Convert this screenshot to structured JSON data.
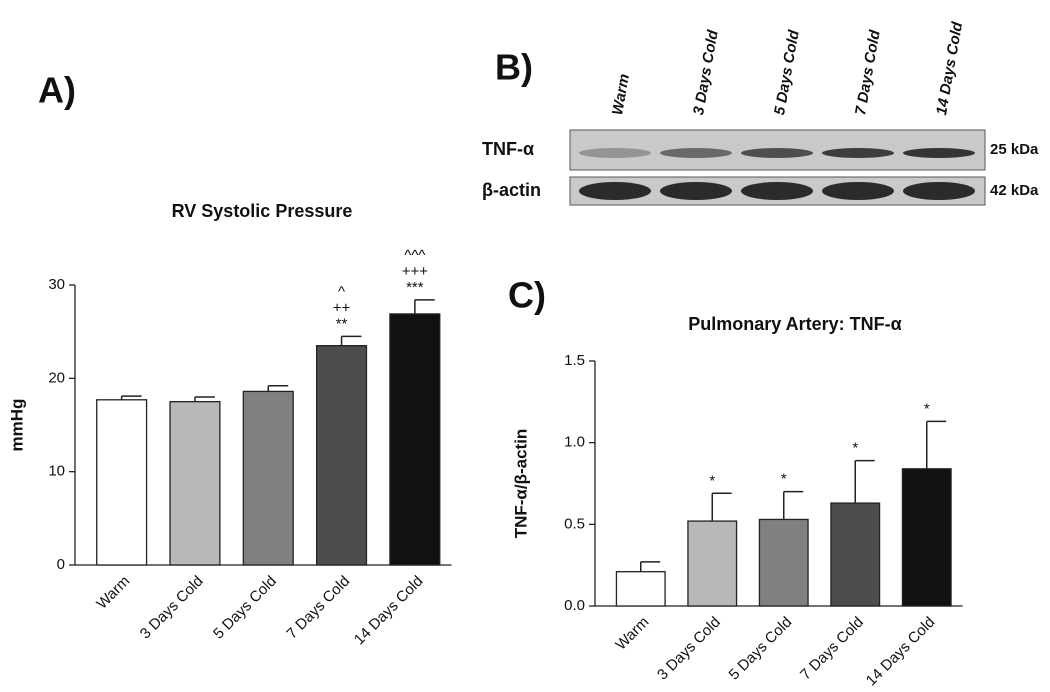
{
  "panel_labels": [
    "A)",
    "B)",
    "C)"
  ],
  "blot": {
    "lanes": [
      "Warm",
      "3 Days Cold",
      "5 Days Cold",
      "7 Days Cold",
      "14 Days Cold"
    ],
    "rows": [
      {
        "label": "TNF-α",
        "size": "25 kDa"
      },
      {
        "label": "β-actin",
        "size": "42 kDa"
      }
    ]
  },
  "chart_data": [
    {
      "type": "bar",
      "title": "RV Systolic Pressure",
      "y_label": "mmHg",
      "categories": [
        "Warm",
        "3 Days Cold",
        "5 Days Cold",
        "7 Days Cold",
        "14 Days Cold"
      ],
      "values": [
        17.7,
        17.5,
        18.6,
        23.5,
        26.9
      ],
      "errors": [
        0.4,
        0.5,
        0.6,
        1.0,
        1.5
      ],
      "annotations": [
        null,
        null,
        null,
        [
          "^",
          "++",
          "**"
        ],
        [
          "^^^",
          "+++",
          "***"
        ]
      ],
      "colors": [
        "#ffffff",
        "#b8b8b8",
        "#808080",
        "#4d4d4d",
        "#111111"
      ],
      "ylim": [
        0,
        30
      ],
      "yticks": [
        0,
        10,
        20,
        30
      ],
      "grid": false
    },
    {
      "type": "bar",
      "title": "Pulmonary Artery: TNF-α",
      "y_label": "TNF-α/β-actin",
      "categories": [
        "Warm",
        "3 Days Cold",
        "5 Days Cold",
        "7 Days Cold",
        "14 Days Cold"
      ],
      "values": [
        0.21,
        0.52,
        0.53,
        0.63,
        0.84
      ],
      "errors": [
        0.06,
        0.17,
        0.17,
        0.26,
        0.29
      ],
      "annotations": [
        null,
        [
          "*"
        ],
        [
          "*"
        ],
        [
          "*"
        ],
        [
          "*"
        ]
      ],
      "colors": [
        "#ffffff",
        "#b8b8b8",
        "#808080",
        "#4d4d4d",
        "#111111"
      ],
      "ylim": [
        0,
        1.5
      ],
      "yticks": [
        {
          "value": 0,
          "label": "0.0"
        },
        0.5,
        {
          "value": 1,
          "label": "1.0"
        },
        1.5
      ],
      "grid": false
    }
  ]
}
